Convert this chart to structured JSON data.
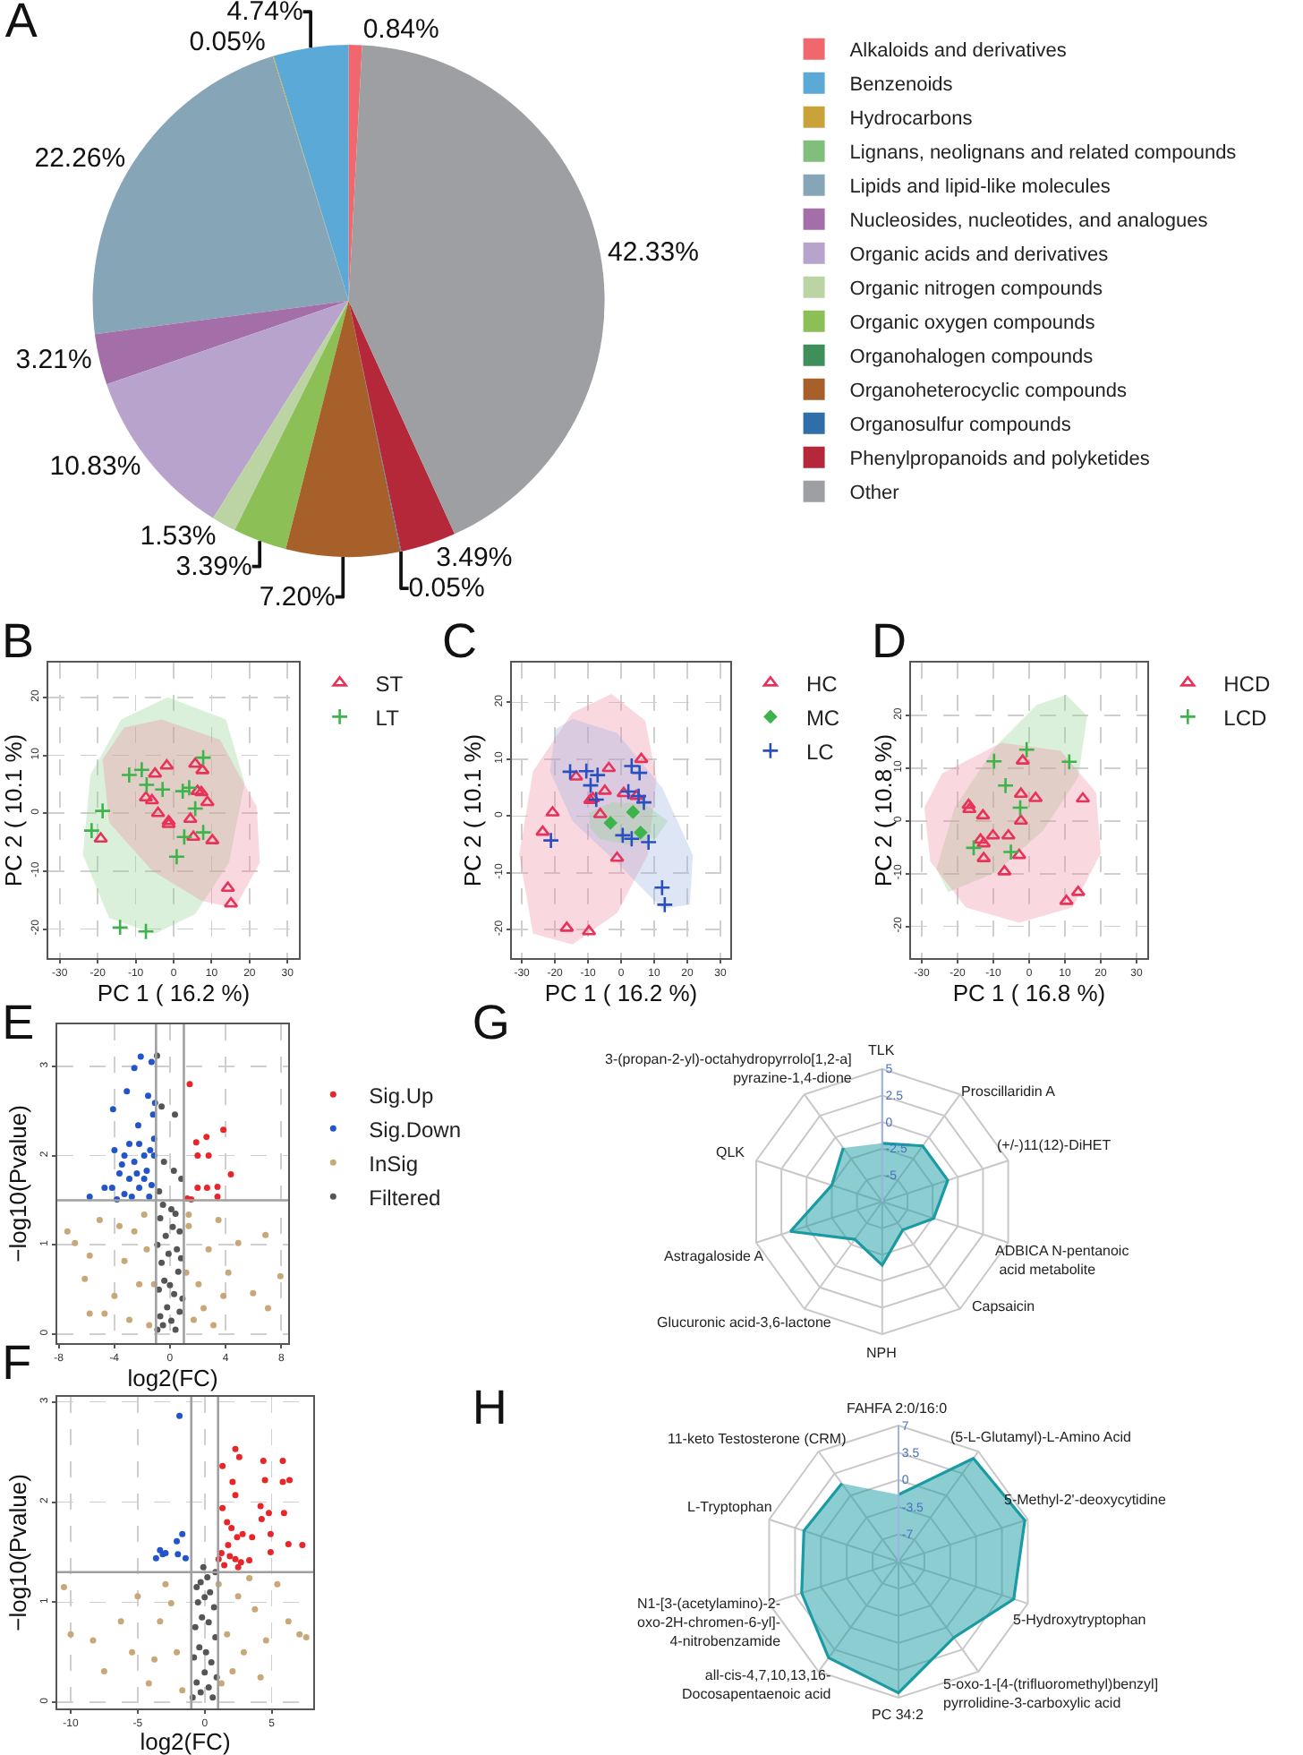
{
  "chart_data": [
    {
      "type": "pie",
      "title": "A",
      "legend": "right",
      "categories": [
        "Alkaloids and derivatives",
        "Benzenoids",
        "Hydrocarbons",
        "Lignans, neolignans and related compounds",
        "Lipids and lipid-like molecules",
        "Nucleosides, nucleotides, and analogues",
        "Organic acids and derivatives",
        "Organic nitrogen compounds",
        "Organic oxygen compounds",
        "Organohalogen compounds",
        "Organoheterocyclic compounds",
        "Organosulfur compounds",
        "Phenylpropanoids and polyketides",
        "Other"
      ],
      "values": [
        0.84,
        4.74,
        0.05,
        null,
        22.26,
        3.21,
        10.83,
        1.53,
        3.39,
        null,
        7.2,
        0.05,
        3.49,
        42.33
      ],
      "value_labels": [
        "0.84%",
        "4.74%",
        "0.05%",
        null,
        "22.26%",
        "3.21%",
        "10.83%",
        "1.53%",
        "3.39%",
        null,
        "7.20%",
        "0.05%",
        "3.49%",
        "42.33%"
      ],
      "colors": [
        "#f0686e",
        "#5aa9d6",
        "#c9a23a",
        "#7fbf7b",
        "#86a6b8",
        "#a46fa8",
        "#b8a3cc",
        "#bcd4a4",
        "#8cc056",
        "#3f8f5a",
        "#a8602a",
        "#2f6ea8",
        "#b5283a",
        "#9d9fa2"
      ]
    },
    {
      "type": "scatter",
      "title": "B",
      "xlabel": "PC 1 ( 16.2 %)",
      "ylabel": "PC 2 ( 10.1 %)",
      "xlim": [
        -33,
        33
      ],
      "ylim": [
        -25,
        26
      ],
      "xticks": [
        -30,
        -20,
        -10,
        0,
        10,
        20,
        30
      ],
      "yticks": [
        -20,
        -10,
        0,
        10,
        20
      ],
      "grid": true,
      "legend": "top right",
      "series": [
        {
          "type": "area",
          "color": "#8fd08f",
          "x": [
            -1.6,
            13.8,
            18.7,
            14.6,
            5.7,
            -4.9,
            -17.0,
            -23.9,
            -21.9,
            -13.8
          ],
          "values": [
            20,
            16.2,
            5.2,
            -8.5,
            -17.4,
            -20.8,
            -18.1,
            -7.1,
            6.6,
            16.2
          ]
        },
        {
          "type": "area",
          "color": "#f08aa0",
          "x": [
            -3.2,
            12.2,
            21.9,
            22.7,
            16.2,
            7.3,
            -5.7,
            -17.0,
            -18.7,
            -13.0
          ],
          "values": [
            16.2,
            12.7,
            1.1,
            -8.5,
            -16.4,
            -15.1,
            -9.9,
            -1.6,
            9.3,
            14.8
          ]
        },
        {
          "name": "ST",
          "color": "#e8325a",
          "marker": "triangle",
          "x": [
            -19.2,
            -7.3,
            -5.7,
            -4.1,
            -1.8,
            -1.3,
            -1.3,
            -4.9,
            5.7,
            7.6,
            6.3,
            7.3,
            8.9,
            4.4,
            5.2,
            10.2,
            14.3,
            15.1
          ],
          "values": [
            -4.4,
            2.7,
            2.2,
            0,
            8.2,
            -1.4,
            -1.9,
            6.8,
            8.5,
            7.4,
            3.8,
            3.6,
            1.9,
            -1.0,
            -4.1,
            -4.7,
            -12.9,
            -15.6
          ]
        },
        {
          "name": "LT",
          "color": "#3cb44b",
          "marker": "cross",
          "x": [
            -21.6,
            -18.7,
            -11.7,
            -8.4,
            -7.1,
            -2.9,
            2.4,
            4.1,
            5.7,
            2.8,
            7.8,
            7.8,
            0.8,
            -14.1,
            -7.3
          ],
          "values": [
            -3.0,
            0.4,
            6.6,
            7.5,
            4.9,
            4.1,
            3.8,
            4.4,
            0.8,
            -4.1,
            9.6,
            -3.3,
            -7.5,
            -19.7,
            -20.4
          ]
        }
      ]
    },
    {
      "type": "scatter",
      "title": "C",
      "xlabel": "PC 1 ( 16.2 %)",
      "ylabel": "PC 2 ( 10.1 %)",
      "xlim": [
        -33,
        33
      ],
      "ylim": [
        -25,
        27
      ],
      "xticks": [
        -30,
        -20,
        -10,
        0,
        10,
        20,
        30
      ],
      "yticks": [
        -20,
        -10,
        0,
        10,
        20
      ],
      "grid": true,
      "legend": "top right",
      "series": [
        {
          "type": "area",
          "color": "#f08aa0",
          "x": [
            -2.9,
            7.3,
            10.7,
            8.1,
            -1.2,
            -14.7,
            -26.6,
            -30.8,
            -26.6,
            -14.7
          ],
          "values": [
            21.5,
            16.8,
            6.5,
            -6.8,
            -17.1,
            -22.6,
            -20.7,
            -6.8,
            7.9,
            18.2
          ]
        },
        {
          "type": "area",
          "color": "#9ab0e0",
          "x": [
            -14.7,
            -1.2,
            12.4,
            21.7,
            20.8,
            12.4,
            -1.2,
            -14.7,
            -21.5,
            -19.8
          ],
          "values": [
            17.1,
            14.6,
            5.0,
            -6.8,
            -15.6,
            -16.3,
            -8.2,
            -0.9,
            7.9,
            15.3
          ]
        },
        {
          "type": "area",
          "color": "#8fd08f",
          "x": [
            -9.7,
            -2.9,
            7.3,
            14.1,
            10.7,
            2.2,
            -6.3,
            -9.3
          ],
          "values": [
            0.6,
            2.4,
            2.1,
            -0.9,
            -3.8,
            -5.0,
            -4.1,
            -2.1
          ]
        },
        {
          "name": "HC",
          "color": "#e8325a",
          "marker": "triangle",
          "x": [
            -23.7,
            -20.7,
            -13.6,
            -9.3,
            -8.5,
            -6.3,
            -4.9,
            -3.7,
            0.8,
            4.6,
            6.1,
            -1.2,
            -16.4,
            -9.7
          ],
          "values": [
            -2.8,
            0.6,
            6.9,
            2.8,
            3.1,
            0.3,
            4.4,
            8.4,
            4.0,
            3.5,
            10.0,
            -7.4,
            -19.7,
            -20.3
          ]
        },
        {
          "name": "MC",
          "color": "#3cb44b",
          "marker": "diamond",
          "x": [
            -3.2,
            3.6,
            5.9
          ],
          "values": [
            -1.2,
            0.7,
            -2.9
          ]
        },
        {
          "name": "LC",
          "color": "#2a4fc0",
          "marker": "cross",
          "x": [
            -21.2,
            -15.4,
            -10.5,
            -9.2,
            -7.1,
            -7.5,
            3.2,
            5.6,
            2.2,
            5.3,
            6.9,
            0.5,
            3.2,
            8.3,
            12.4,
            13.2
          ],
          "values": [
            -4.3,
            7.8,
            7.9,
            5.4,
            7.2,
            2.9,
            8.8,
            7.6,
            4.3,
            3.5,
            2.4,
            -3.4,
            -4.0,
            -4.6,
            -12.6,
            -15.6
          ]
        }
      ]
    },
    {
      "type": "scatter",
      "title": "D",
      "xlabel": "PC 1 ( 16.8 %)",
      "ylabel": "PC 2 ( 10.8 %)",
      "xlim": [
        -33,
        33
      ],
      "ylim": [
        -26,
        30
      ],
      "xticks": [
        -30,
        -20,
        -10,
        0,
        10,
        20,
        30
      ],
      "yticks": [
        -20,
        -10,
        0,
        10,
        20
      ],
      "grid": true,
      "legend": "top right",
      "series": [
        {
          "type": "area",
          "color": "#8fd08f",
          "x": [
            10.4,
            16.2,
            13.7,
            3.8,
            -9.4,
            -22.6,
            -25.9,
            -20.8,
            -9.4,
            2.1
          ],
          "values": [
            23.9,
            19.9,
            8.3,
            -1.9,
            -9.8,
            -13.5,
            -9.1,
            2.5,
            14.1,
            22.0
          ]
        },
        {
          "type": "area",
          "color": "#f08aa0",
          "x": [
            -24.3,
            -7.8,
            8.8,
            18.7,
            20.0,
            12.1,
            -2.8,
            -17.7,
            -27.6,
            -29.3
          ],
          "values": [
            9.0,
            14.8,
            13.3,
            5.4,
            -6.2,
            -16.4,
            -19.3,
            -16.4,
            -7.7,
            2.5
          ]
        },
        {
          "name": "HCD",
          "color": "#e8325a",
          "marker": "triangle",
          "x": [
            -16.9,
            -16.7,
            -12.9,
            -13.6,
            -12.7,
            -10.1,
            -12.7,
            -5.8,
            -6.9,
            -1.8,
            -2.3,
            -2.3,
            -2.8,
            1.8,
            15.0,
            10.4,
            13.7
          ],
          "values": [
            3.0,
            2.2,
            1.0,
            -3.6,
            -4.3,
            -2.8,
            -7.1,
            -2.8,
            -9.6,
            11.4,
            5.1,
            0,
            -6.5,
            4.3,
            4.2,
            -15.2,
            -13.5
          ]
        },
        {
          "name": "LCD",
          "color": "#3cb44b",
          "marker": "cross",
          "x": [
            -15.5,
            -9.8,
            -6.6,
            -5.1,
            -2.5,
            -0.7,
            11.2
          ],
          "values": [
            -5.1,
            11.3,
            6.7,
            -5.9,
            2.5,
            13.5,
            11.2
          ]
        }
      ]
    },
    {
      "type": "scatter",
      "title": "E",
      "xlabel": "log2(FC)",
      "ylabel": "−log10(Pvalue)",
      "xlim": [
        -8.1,
        8.5
      ],
      "ylim": [
        -0.1,
        3.47
      ],
      "xticks": [
        -8,
        -4,
        0,
        4,
        8
      ],
      "yticks": [
        0,
        1,
        2,
        3
      ],
      "grid": true,
      "legend": "right",
      "marker": "circle",
      "ref_lines": [
        {
          "axis": "x",
          "value": -1,
          "color": "#a0a0a0"
        },
        {
          "axis": "x",
          "value": 1,
          "color": "#a0a0a0"
        },
        {
          "axis": "y",
          "value": 1.5,
          "color": "#a0a0a0"
        }
      ],
      "series": [
        {
          "name": "Sig.Up",
          "color": "#e8262a",
          "x": [
            1.42,
            1.89,
            2.63,
            3.84,
            1.99,
            2.78,
            1.99,
            3.42,
            4.38,
            2.67,
            1.25,
            3.42,
            1.53
          ],
          "values": [
            2.8,
            2.15,
            2.21,
            2.29,
            2.0,
            2.0,
            1.64,
            1.65,
            1.79,
            1.64,
            1.52,
            1.54,
            1.51
          ]
        },
        {
          "name": "Sig.Down",
          "color": "#2255c8",
          "x": [
            -2.1,
            -1.32,
            -2.56,
            -3.1,
            -4.09,
            -1.57,
            -2.28,
            -1.07,
            -1.21,
            -2.92,
            -2.21,
            -1.42,
            -3.45,
            -2.56,
            -1.85,
            -1.14,
            -3.63,
            -2.92,
            -1.67,
            -4.16,
            -3.27,
            -2.21,
            -1.32,
            -4.7,
            -5.77,
            -3.81,
            -2.74,
            -1.49,
            -1.85,
            -2.38,
            -3.99,
            -1.14,
            -3.27
          ],
          "values": [
            3.11,
            3.05,
            2.98,
            2.72,
            2.52,
            2.67,
            2.34,
            2.59,
            2.46,
            2.13,
            2.13,
            2.06,
            1.9,
            1.93,
            2.0,
            2.0,
            1.8,
            1.74,
            1.83,
            1.64,
            1.57,
            1.64,
            1.67,
            1.64,
            1.54,
            1.51,
            1.54,
            1.54,
            1.74,
            1.8,
            2.06,
            2.19,
            2.0
          ]
        },
        {
          "name": "InSig",
          "color": "#c8a878",
          "x": [
            -6.83,
            -5.77,
            -6.12,
            -4.7,
            -3.99,
            -3.27,
            -2.56,
            -1.85,
            -2.21,
            -2.92,
            -1.49,
            -1.67,
            -3.63,
            -5.05,
            -7.37,
            1.71,
            2.06,
            2.78,
            1.35,
            3.49,
            4.2,
            4.91,
            5.98,
            7.05,
            7.94,
            6.87,
            1.35,
            2.42,
            3.13,
            3.84,
            1.17,
            -1.14,
            -5.77
          ],
          "values": [
            1.02,
            0.88,
            0.62,
            0.23,
            0.43,
            0.82,
            1.15,
            1.34,
            0.56,
            0.16,
            0.1,
            0.95,
            1.21,
            1.28,
            1.15,
            0.16,
            0.56,
            0.95,
            1.21,
            1.28,
            0.69,
            1.02,
            0.46,
            0.29,
            0.65,
            1.11,
            1.34,
            0.29,
            0.1,
            0.43,
            0.69,
            0.56,
            0.23
          ]
        },
        {
          "name": "Filtered",
          "color": "#555555",
          "x": [
            -0.9,
            -0.7,
            -0.5,
            -0.2,
            0.1,
            0.4,
            0.7,
            0.9,
            -0.8,
            -0.4,
            0,
            0.3,
            0.6,
            -0.6,
            -0.1,
            0.5,
            0.8,
            -0.9,
            -0.3,
            0.2,
            0.7,
            -0.7,
            0.4,
            -0.5,
            0.1,
            -0.93,
            -0.6,
            0.36,
            -0.43,
            0.28,
            0.82,
            -0.78
          ],
          "values": [
            0.05,
            0.2,
            0.1,
            0.3,
            0.15,
            0.05,
            0.25,
            0.4,
            0.5,
            0.6,
            0.55,
            0.45,
            0.7,
            0.8,
            0.9,
            0.95,
            0.85,
            1.0,
            1.1,
            1.2,
            1.15,
            1.3,
            1.35,
            1.45,
            1.4,
            3.12,
            2.55,
            2.46,
            1.93,
            1.83,
            1.74,
            1.6
          ]
        }
      ]
    },
    {
      "type": "scatter",
      "title": "F",
      "xlabel": "log2(FC)",
      "ylabel": "−log10(Pvalue)",
      "xlim": [
        -11,
        8.1
      ],
      "ylim": [
        -0.06,
        3.05
      ],
      "xticks": [
        -10,
        -5,
        0,
        5
      ],
      "yticks": [
        0,
        1,
        2,
        3
      ],
      "grid": true,
      "marker": "circle",
      "ref_lines": [
        {
          "axis": "x",
          "value": -1,
          "color": "#a0a0a0"
        },
        {
          "axis": "x",
          "value": 1,
          "color": "#a0a0a0"
        },
        {
          "axis": "y",
          "value": 1.3,
          "color": "#a0a0a0"
        }
      ],
      "series": [
        {
          "color": "#e8262a",
          "x": [
            2.29,
            2.58,
            1.33,
            2.08,
            2.29,
            4.38,
            4.5,
            5.83,
            5.83,
            6.33,
            5.92,
            4.17,
            4.79,
            4.25,
            1.33,
            1.67,
            2.0,
            2.83,
            3.54,
            4.92,
            6.25,
            7.29,
            4.92,
            1.25,
            1.88,
            2.29,
            2.71,
            3.33,
            1.46,
            2.5,
            1.04,
            1.75,
            2.42
          ],
          "values": [
            2.53,
            2.45,
            2.36,
            2.2,
            2.07,
            2.41,
            2.22,
            2.41,
            2.2,
            2.22,
            1.89,
            1.96,
            1.89,
            1.83,
            1.94,
            1.8,
            1.74,
            1.68,
            1.65,
            1.68,
            1.58,
            1.57,
            1.5,
            1.49,
            1.46,
            1.43,
            1.4,
            1.42,
            1.37,
            1.35,
            1.43,
            1.57,
            1.65
          ]
        },
        {
          "color": "#2255c8",
          "x": [
            -1.88,
            -1.67,
            -2.08,
            -3.33,
            -3.13,
            -3.63,
            -2.0,
            -1.42,
            -2.92
          ],
          "values": [
            2.86,
            1.68,
            1.61,
            1.52,
            1.48,
            1.44,
            1.48,
            1.44,
            1.49
          ]
        },
        {
          "color": "#c8a878",
          "x": [
            -10,
            -8.33,
            -7.5,
            -6.25,
            -5.42,
            -5.0,
            -4.17,
            -3.33,
            -2.92,
            -2.08,
            -1.67,
            -2.5,
            -3.75,
            1.25,
            1.67,
            2.5,
            2.92,
            3.75,
            4.58,
            5.42,
            6.25,
            7.08,
            7.58,
            2.08,
            4.17,
            1.04,
            3.33,
            -10.5
          ],
          "values": [
            0.68,
            0.62,
            0.31,
            0.81,
            0.5,
            1.06,
            0.19,
            0.81,
            1.18,
            0.5,
            0.12,
            0.99,
            0.43,
            0.19,
            0.68,
            1.06,
            0.5,
            0.93,
            0.62,
            1.18,
            0.81,
            0.68,
            0.65,
            0.31,
            0.25,
            1.18,
            1.24,
            1.15
          ]
        },
        {
          "color": "#555555",
          "x": [
            -0.9,
            -0.6,
            -0.3,
            0,
            0.3,
            0.6,
            0.9,
            -0.8,
            -0.4,
            0.1,
            0.5,
            0.8,
            -0.7,
            -0.2,
            0.3,
            0.7,
            -0.5,
            0,
            0.4,
            -0.3,
            0.2,
            -0.1,
            0.8,
            -0.6
          ],
          "values": [
            0.05,
            0.2,
            0.1,
            0.3,
            0.15,
            0.05,
            0.25,
            0.45,
            0.55,
            0.5,
            0.4,
            0.65,
            0.75,
            0.85,
            0.8,
            0.95,
            1.0,
            1.05,
            1.1,
            1.2,
            1.25,
            1.35,
            1.3,
            1.15
          ]
        }
      ]
    },
    {
      "type": "radar",
      "title": "G",
      "ylim": [
        -7.5,
        5
      ],
      "yticks": [
        -5,
        -2.5,
        0,
        2.5,
        5
      ],
      "grid": true,
      "categories": [
        "TLK",
        "Proscillaridin A",
        "(+/-)11(12)-DiHET",
        "ADBICA N-pentanoic\n acid metabolite",
        "Capsaicin",
        "NPH",
        "Glucuronic acid-3,6-lactone",
        "Astragaloside A",
        "QLK",
        "3-(propan-2-yl)-octahydropyrrolo[1,2-a]\npyrazine-1,4-dione"
      ],
      "series": [
        {
          "color": "#1a9ba3",
          "values": [
            -2.0,
            -1.0,
            -1.0,
            -2.4,
            -4.2,
            -1.5,
            -3.1,
            1.6,
            -2.5,
            -1.25
          ]
        }
      ]
    },
    {
      "type": "radar",
      "title": "H",
      "ylim": [
        -10.5,
        7
      ],
      "yticks": [
        -7,
        -3.5,
        0,
        3.5,
        7
      ],
      "grid": true,
      "categories": [
        "FAHFA 2:0/16:0",
        "(5-L-Glutamyl)-L-Amino Acid",
        "5-Methyl-2'-deoxycytidine",
        "5-Hydroxytryptophan",
        "5-oxo-1-[4-(trifluoromethyl)benzyl]\npyrrolidine-3-carboxylic acid",
        "PC 34:2",
        "all-cis-4,7,10,13,16-\nDocosapentaenoic acid",
        "N1-[3-(acetylamino)-2-\noxo-2H-chromen-6-yl]-\n4-nitrobenzamide",
        "L-Tryptophan",
        "11-keto Testosterone (CRM)"
      ],
      "series": [
        {
          "color": "#1a9ba3",
          "values": [
            -1.9,
            5.9,
            6.6,
            5.1,
            1.6,
            6.4,
            4.8,
            2.6,
            2.3,
            1.9
          ]
        }
      ]
    }
  ]
}
